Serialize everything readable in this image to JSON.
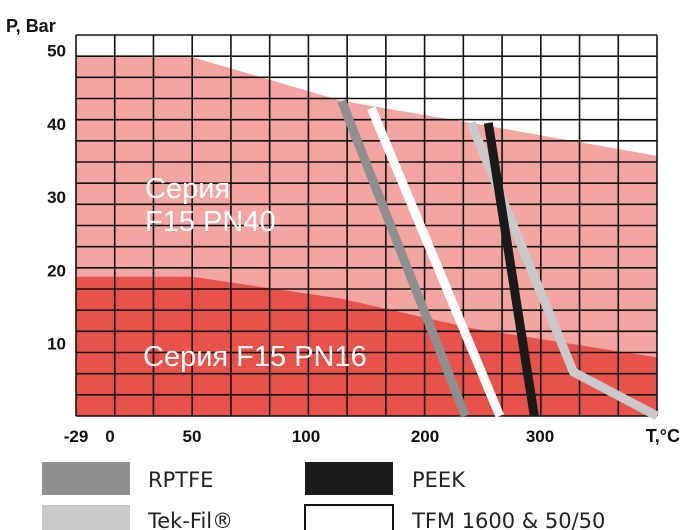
{
  "chart_data": {
    "type": "line",
    "ylabel": "P, Bar",
    "xlabel": "T,°C",
    "x_ticks": [
      "-29",
      "0",
      "50",
      "100",
      "200",
      "300"
    ],
    "y_ticks": [
      "50",
      "40",
      "30",
      "20",
      "10"
    ],
    "ylim": [
      0,
      52
    ],
    "grid": true,
    "regions": [
      {
        "label_lines": [
          "Серия",
          "F15 PN40"
        ],
        "color": "#f3a5a2",
        "boundary": [
          [
            -29,
            49
          ],
          [
            50,
            49
          ],
          [
            130,
            43
          ],
          [
            240,
            40
          ],
          [
            370,
            35.5
          ]
        ]
      },
      {
        "label_lines": [
          "Серия F15 PN16"
        ],
        "color": "#e8524a",
        "boundary": [
          [
            -29,
            19
          ],
          [
            50,
            19
          ],
          [
            130,
            16
          ],
          [
            240,
            12
          ],
          [
            370,
            8
          ]
        ]
      }
    ],
    "series": [
      {
        "name": "RPTFE",
        "color": "#8f8f8f",
        "points": [
          [
            130,
            43
          ],
          [
            235,
            0
          ]
        ]
      },
      {
        "name": "Tek-Fil®",
        "color": "#c9c9c9",
        "points": [
          [
            240,
            40
          ],
          [
            320,
            6
          ],
          [
            370,
            0
          ]
        ]
      },
      {
        "name": "PEEK",
        "color": "#1a1a1a",
        "points": [
          [
            255,
            40
          ],
          [
            295,
            0
          ]
        ]
      },
      {
        "name": "TFM 1600 & 50/50",
        "color": "#ffffff",
        "points": [
          [
            155,
            42
          ],
          [
            265,
            0
          ]
        ]
      }
    ],
    "legend": [
      {
        "label": "RPTFE",
        "color": "#8f8f8f"
      },
      {
        "label": "PEEK",
        "color": "#1a1a1a"
      },
      {
        "label": "Tek-Fil®",
        "color": "#c9c9c9"
      },
      {
        "label": "TFM 1600 & 50/50",
        "color": "#ffffff"
      }
    ]
  }
}
